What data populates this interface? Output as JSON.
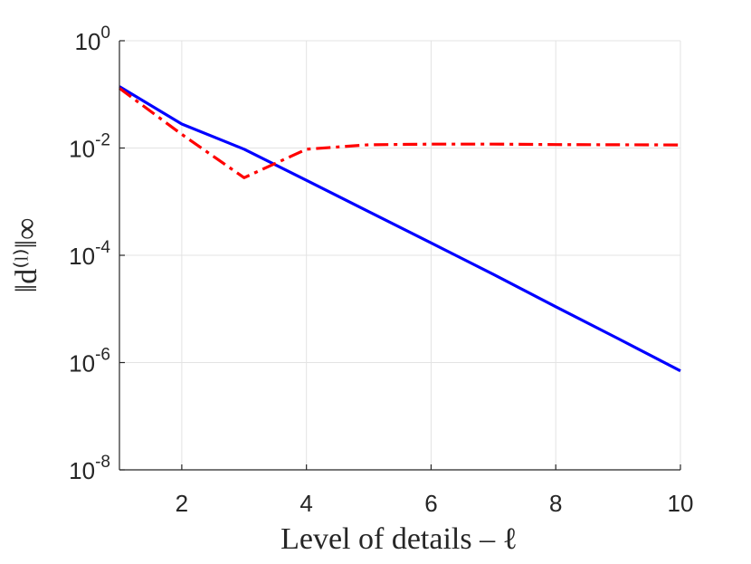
{
  "chart_data": {
    "type": "line",
    "xlabel": "Level of details – ℓ",
    "ylabel": "‖d⁽ˡ⁾‖∞",
    "xlim": [
      1,
      10
    ],
    "ylim_log10": [
      -8,
      0
    ],
    "y_scale": "log",
    "grid": true,
    "x_ticks": [
      {
        "value": 2,
        "label": "2"
      },
      {
        "value": 4,
        "label": "4"
      },
      {
        "value": 6,
        "label": "6"
      },
      {
        "value": 8,
        "label": "8"
      },
      {
        "value": 10,
        "label": "10"
      }
    ],
    "y_ticks": [
      {
        "exp": 0,
        "base": "10",
        "sup": "0"
      },
      {
        "exp": -2,
        "base": "10",
        "sup": "-2"
      },
      {
        "exp": -4,
        "base": "10",
        "sup": "-4"
      },
      {
        "exp": -6,
        "base": "10",
        "sup": "-6"
      },
      {
        "exp": -8,
        "base": "10",
        "sup": "-8"
      }
    ],
    "series": [
      {
        "color": "#0000ff",
        "style": "solid",
        "x": [
          1,
          2,
          3,
          4,
          5,
          6,
          7,
          8,
          9,
          10
        ],
        "y": [
          0.14,
          0.028,
          0.0095,
          0.0025,
          0.00065,
          0.00017,
          4.4e-05,
          1.1e-05,
          2.8e-06,
          7e-07
        ]
      },
      {
        "color": "#ff0000",
        "style": "dashdot",
        "x": [
          1,
          2,
          3,
          4,
          5,
          6,
          7,
          8,
          9,
          10
        ],
        "y": [
          0.13,
          0.018,
          0.0028,
          0.0095,
          0.0115,
          0.0118,
          0.0118,
          0.0116,
          0.0115,
          0.0114
        ]
      }
    ]
  }
}
